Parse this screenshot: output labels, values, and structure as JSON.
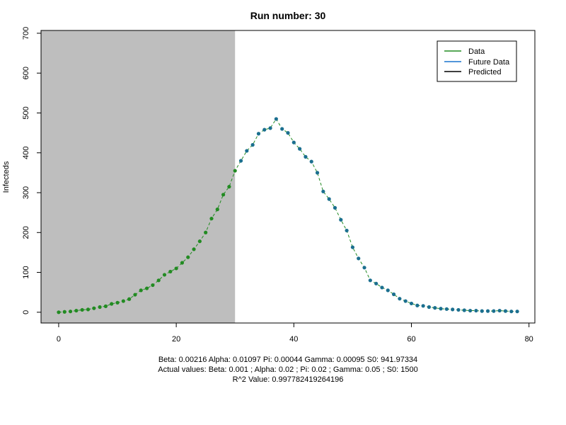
{
  "chart_data": {
    "type": "scatter",
    "title": "Run number:  30",
    "xlabel": "",
    "ylabel": "Infecteds",
    "xlim": [
      -3,
      81
    ],
    "ylim": [
      -27,
      707
    ],
    "x_ticks": [
      0,
      20,
      40,
      60,
      80
    ],
    "y_ticks": [
      0,
      100,
      200,
      300,
      400,
      500,
      600,
      700
    ],
    "x_tick_labels": [
      "0",
      "20",
      "40",
      "60",
      "80"
    ],
    "y_tick_labels": [
      "0",
      "100",
      "200",
      "300",
      "400",
      "500",
      "600",
      "700"
    ],
    "shaded_region": {
      "x0": -3,
      "x1": 30,
      "color": "#bebebe"
    },
    "grid": false,
    "legend_position": "top-right",
    "legend": [
      {
        "label": "Data",
        "color": "#228b22"
      },
      {
        "label": "Future Data",
        "color": "#1874cd"
      },
      {
        "label": "Predicted",
        "color": "#000000"
      }
    ],
    "series": [
      {
        "name": "Data",
        "color": "#228b22",
        "x": [
          0,
          1,
          2,
          3,
          4,
          5,
          6,
          7,
          8,
          9,
          10,
          11,
          12,
          13,
          14,
          15,
          16,
          17,
          18,
          19,
          20,
          21,
          22,
          23,
          24,
          25,
          26,
          27,
          28,
          29,
          30
        ],
        "y": [
          0,
          1,
          2,
          4,
          6,
          7,
          10,
          13,
          15,
          21,
          24,
          28,
          33,
          44,
          55,
          60,
          68,
          80,
          94,
          102,
          110,
          124,
          138,
          158,
          178,
          200,
          235,
          258,
          295,
          315,
          355
        ]
      },
      {
        "name": "Future Data",
        "color": "#1b6f8f",
        "x": [
          31,
          32,
          33,
          34,
          35,
          36,
          37,
          38,
          39,
          40,
          41,
          42,
          43,
          44,
          45,
          46,
          47,
          48,
          49,
          50,
          51,
          52,
          53,
          54,
          55,
          56,
          57,
          58,
          59,
          60,
          61,
          62,
          63,
          64,
          65,
          66,
          67,
          68,
          69,
          70,
          71,
          72,
          73,
          74,
          75,
          76,
          77,
          78
        ],
        "y": [
          380,
          405,
          420,
          448,
          458,
          462,
          485,
          460,
          450,
          426,
          410,
          390,
          378,
          350,
          303,
          284,
          262,
          232,
          205,
          163,
          135,
          112,
          80,
          72,
          62,
          55,
          45,
          34,
          28,
          22,
          17,
          16,
          13,
          11,
          9,
          8,
          7,
          6,
          5,
          4,
          4,
          3,
          3,
          3,
          4,
          3,
          2,
          2
        ]
      }
    ]
  },
  "footer": {
    "line1": "Beta:  0.00216 Alpha:  0.01097 Pi:  0.00044 Gamma:  0.00095 S0:  941.97334",
    "line2": "Actual values: Beta:  0.001 ; Alpha:  0.02 ; Pi:  0.02 ; Gamma:  0.05 ; S0:  1500",
    "line3": "R^2 Value:  0.997782419264196"
  }
}
